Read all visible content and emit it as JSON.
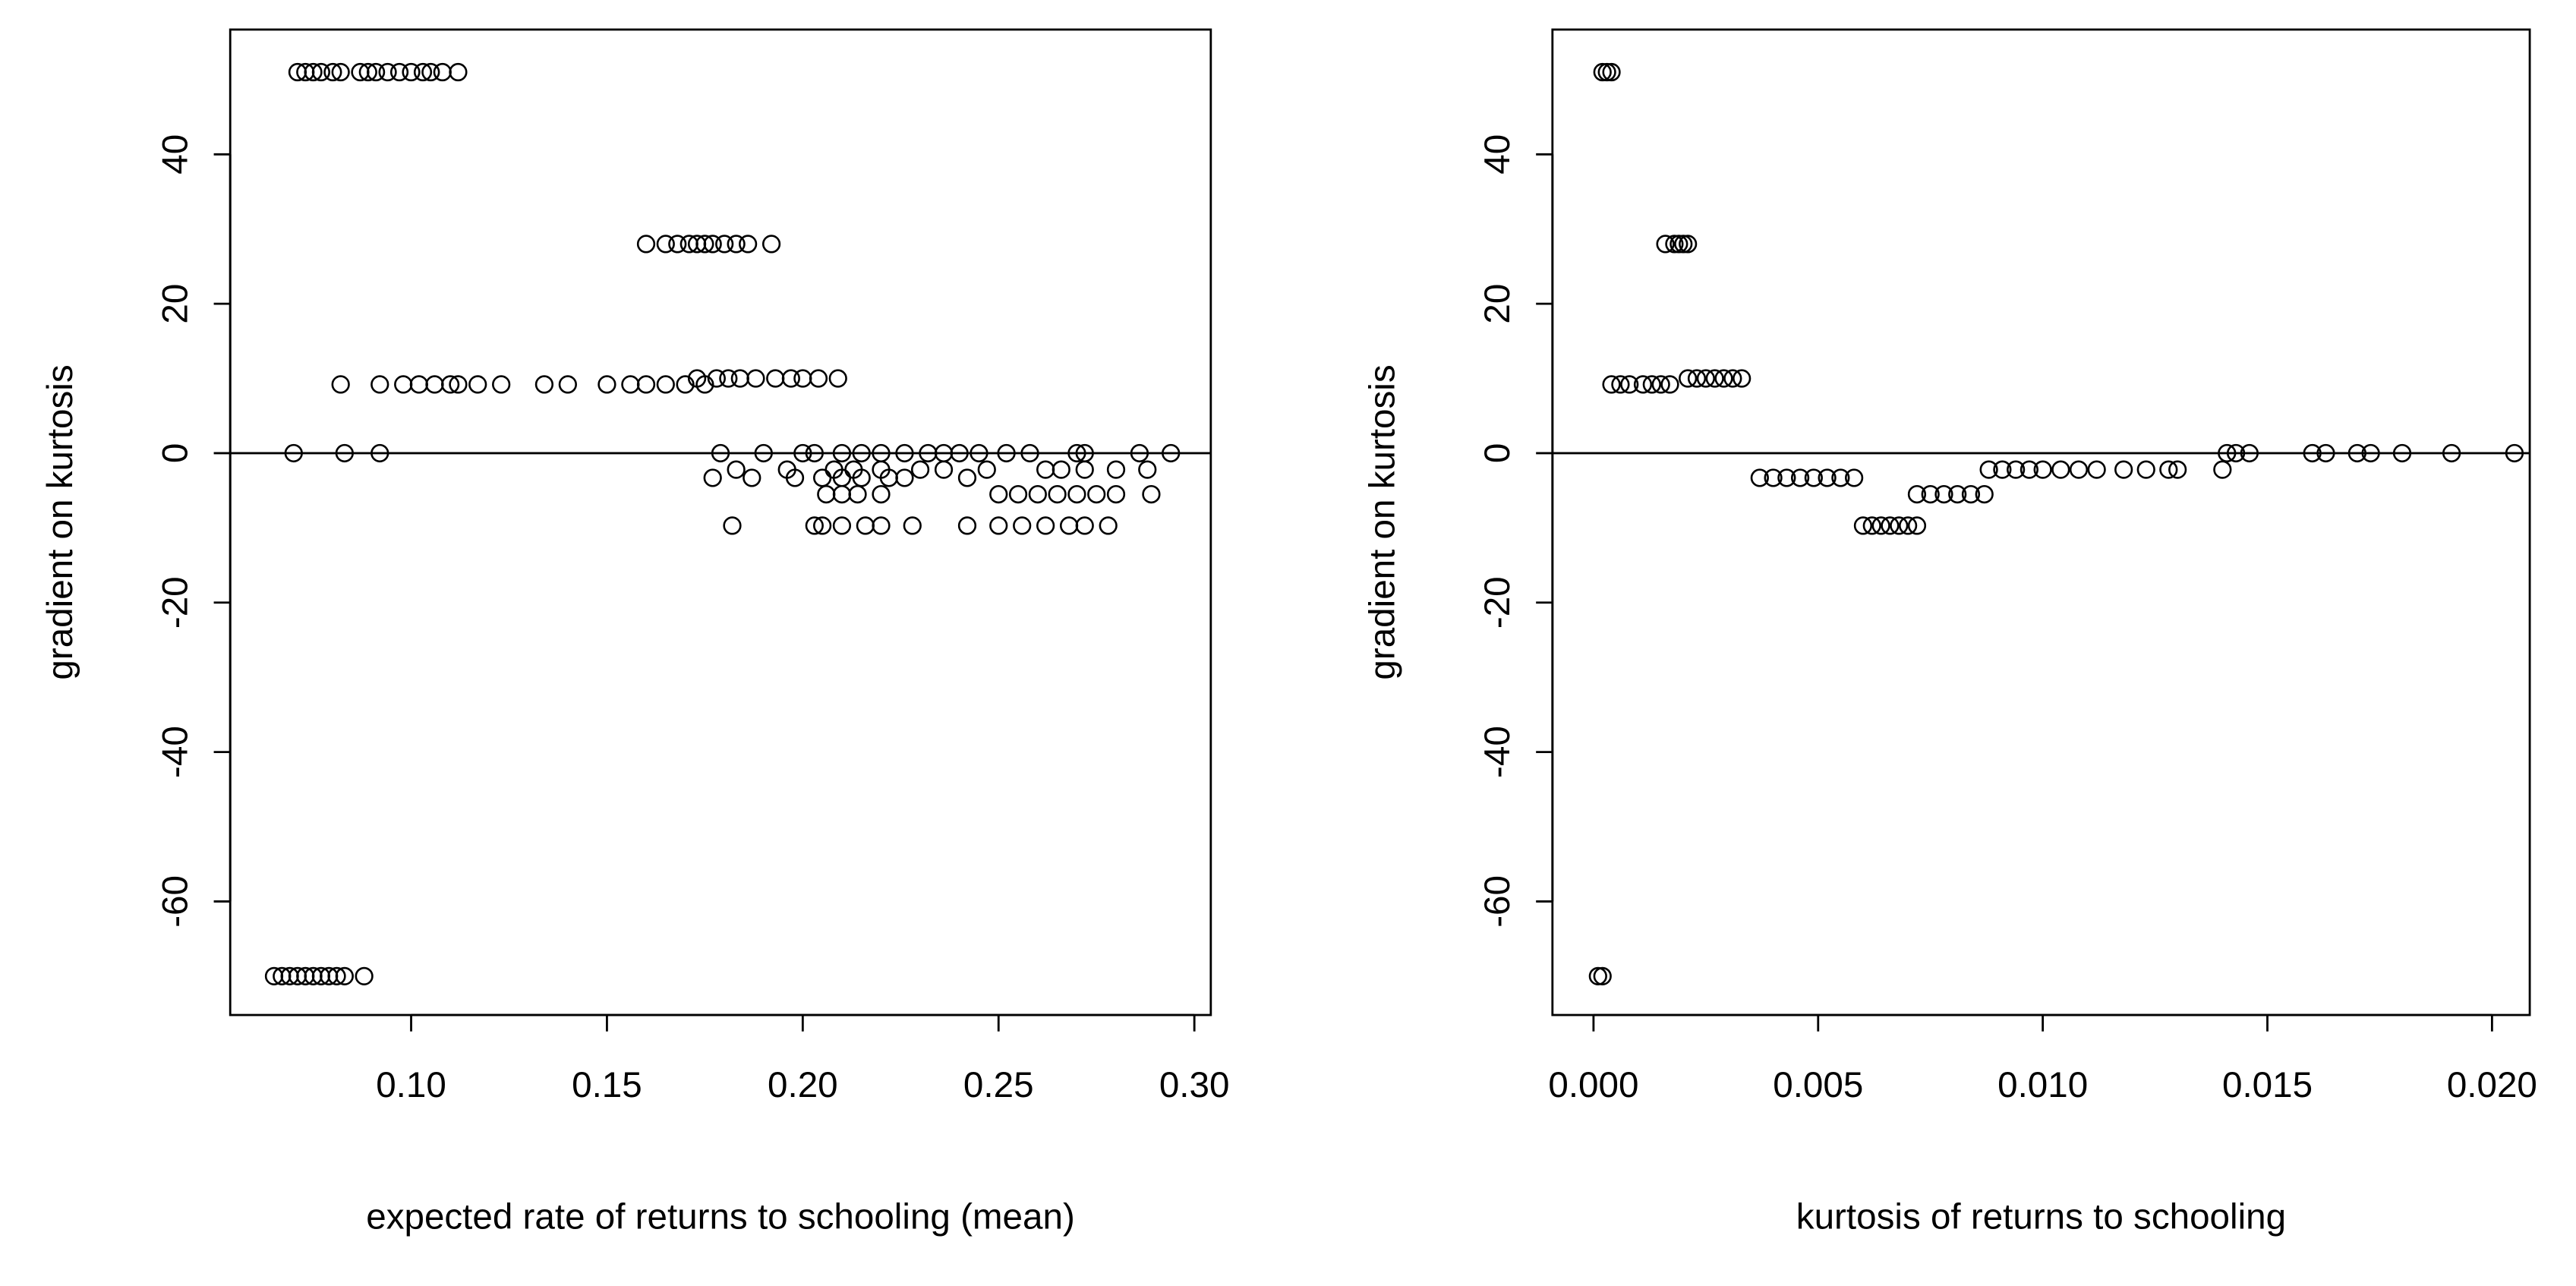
{
  "chart_data": [
    {
      "type": "scatter",
      "xlabel": "expected rate of returns to schooling (mean)",
      "ylabel": "gradient on kurtosis",
      "xlim": [
        0.0538,
        0.3042
      ],
      "ylim": [
        -75.2,
        56.7
      ],
      "xticks": [
        {
          "value": 0.1,
          "label": "0.10"
        },
        0.15,
        {
          "value": 0.2,
          "label": "0.20"
        },
        0.25,
        {
          "value": 0.3,
          "label": "0.30"
        }
      ],
      "yticks": [
        -60,
        -40,
        -20,
        0,
        20,
        40
      ],
      "hline": 0,
      "x": [
        0.071,
        0.073,
        0.075,
        0.077,
        0.08,
        0.082,
        0.087,
        0.089,
        0.091,
        0.094,
        0.097,
        0.1,
        0.103,
        0.105,
        0.108,
        0.112,
        0.16,
        0.165,
        0.168,
        0.171,
        0.173,
        0.175,
        0.177,
        0.18,
        0.183,
        0.186,
        0.192,
        0.082,
        0.092,
        0.098,
        0.102,
        0.106,
        0.11,
        0.112,
        0.117,
        0.123,
        0.134,
        0.14,
        0.15,
        0.156,
        0.16,
        0.165,
        0.17,
        0.175,
        0.173,
        0.178,
        0.181,
        0.184,
        0.188,
        0.193,
        0.197,
        0.2,
        0.204,
        0.209,
        0.07,
        0.083,
        0.092,
        0.179,
        0.19,
        0.2,
        0.203,
        0.21,
        0.215,
        0.22,
        0.226,
        0.232,
        0.236,
        0.24,
        0.245,
        0.252,
        0.258,
        0.27,
        0.272,
        0.286,
        0.294,
        0.177,
        0.187,
        0.198,
        0.205,
        0.21,
        0.215,
        0.222,
        0.226,
        0.242,
        0.183,
        0.196,
        0.208,
        0.213,
        0.22,
        0.23,
        0.236,
        0.247,
        0.262,
        0.266,
        0.272,
        0.28,
        0.288,
        0.206,
        0.21,
        0.214,
        0.22,
        0.25,
        0.255,
        0.26,
        0.265,
        0.27,
        0.275,
        0.28,
        0.289,
        0.182,
        0.203,
        0.205,
        0.21,
        0.216,
        0.22,
        0.228,
        0.242,
        0.25,
        0.256,
        0.262,
        0.268,
        0.272,
        0.278,
        0.065,
        0.067,
        0.069,
        0.071,
        0.073,
        0.075,
        0.077,
        0.079,
        0.081,
        0.083,
        0.088
      ],
      "values": [
        51,
        51,
        51,
        51,
        51,
        51,
        51,
        51,
        51,
        51,
        51,
        51,
        51,
        51,
        51,
        51,
        28,
        28,
        28,
        28,
        28,
        28,
        28,
        28,
        28,
        28,
        28,
        9.2,
        9.2,
        9.2,
        9.2,
        9.2,
        9.2,
        9.2,
        9.2,
        9.2,
        9.2,
        9.2,
        9.2,
        9.2,
        9.2,
        9.2,
        9.2,
        9.2,
        10,
        10,
        10,
        10,
        10,
        10,
        10,
        10,
        10,
        10,
        0,
        0,
        0,
        0,
        0,
        0,
        0,
        0,
        0,
        0,
        0,
        0,
        0,
        0,
        0,
        0,
        0,
        0,
        0,
        0,
        0,
        -3.3,
        -3.3,
        -3.3,
        -3.3,
        -3.3,
        -3.3,
        -3.3,
        -3.3,
        -3.3,
        -2.2,
        -2.2,
        -2.2,
        -2.2,
        -2.2,
        -2.2,
        -2.2,
        -2.2,
        -2.2,
        -2.2,
        -2.2,
        -2.2,
        -2.2,
        -5.5,
        -5.5,
        -5.5,
        -5.5,
        -5.5,
        -5.5,
        -5.5,
        -5.5,
        -5.5,
        -5.5,
        -5.5,
        -5.5,
        -9.7,
        -9.7,
        -9.7,
        -9.7,
        -9.7,
        -9.7,
        -9.7,
        -9.7,
        -9.7,
        -9.7,
        -9.7,
        -9.7,
        -9.7,
        -9.7,
        -70,
        -70,
        -70,
        -70,
        -70,
        -70,
        -70,
        -70,
        -70,
        -70,
        -70
      ]
    },
    {
      "type": "scatter",
      "xlabel": "kurtosis of returns to schooling",
      "ylabel": "gradient on kurtosis",
      "xlim": [
        -0.000914,
        0.02084
      ],
      "ylim": [
        -75.2,
        56.7
      ],
      "xticks": [
        {
          "value": 0,
          "label": "0.000"
        },
        0.005,
        {
          "value": 0.01,
          "label": "0.010"
        },
        0.015,
        {
          "value": 0.02,
          "label": "0.020"
        }
      ],
      "yticks": [
        -60,
        -40,
        -20,
        0,
        20,
        40
      ],
      "hline": 0,
      "x": [
        0.0002,
        0.0003,
        0.0004,
        0.0016,
        0.0018,
        0.0019,
        0.002,
        0.0021,
        0.0004,
        0.0006,
        0.0008,
        0.0011,
        0.0013,
        0.0015,
        0.0017,
        0.0021,
        0.0023,
        0.0025,
        0.0027,
        0.0029,
        0.0031,
        0.0033,
        0.0037,
        0.004,
        0.0043,
        0.0046,
        0.0049,
        0.0052,
        0.0055,
        0.0058,
        0.006,
        0.0062,
        0.0064,
        0.0066,
        0.0068,
        0.007,
        0.0072,
        0.0072,
        0.0075,
        0.0078,
        0.0081,
        0.0084,
        0.0087,
        0.0088,
        0.0091,
        0.0094,
        0.0097,
        0.01,
        0.0104,
        0.0108,
        0.0112,
        0.0118,
        0.0123,
        0.0128,
        0.013,
        0.014,
        0.0141,
        0.0143,
        0.0146,
        0.016,
        0.0163,
        0.017,
        0.0173,
        0.018,
        0.0191,
        0.0205,
        0.0001,
        0.0002
      ],
      "values": [
        51,
        51,
        51,
        28,
        28,
        28,
        28,
        28,
        9.2,
        9.2,
        9.2,
        9.2,
        9.2,
        9.2,
        9.2,
        10,
        10,
        10,
        10,
        10,
        10,
        10,
        -3.3,
        -3.3,
        -3.3,
        -3.3,
        -3.3,
        -3.3,
        -3.3,
        -3.3,
        -9.7,
        -9.7,
        -9.7,
        -9.7,
        -9.7,
        -9.7,
        -9.7,
        -5.5,
        -5.5,
        -5.5,
        -5.5,
        -5.5,
        -5.5,
        -2.2,
        -2.2,
        -2.2,
        -2.2,
        -2.2,
        -2.2,
        -2.2,
        -2.2,
        -2.2,
        -2.2,
        -2.2,
        -2.2,
        -2.2,
        0,
        0,
        0,
        0,
        0,
        0,
        0,
        0,
        0,
        0,
        -70,
        -70
      ]
    }
  ]
}
